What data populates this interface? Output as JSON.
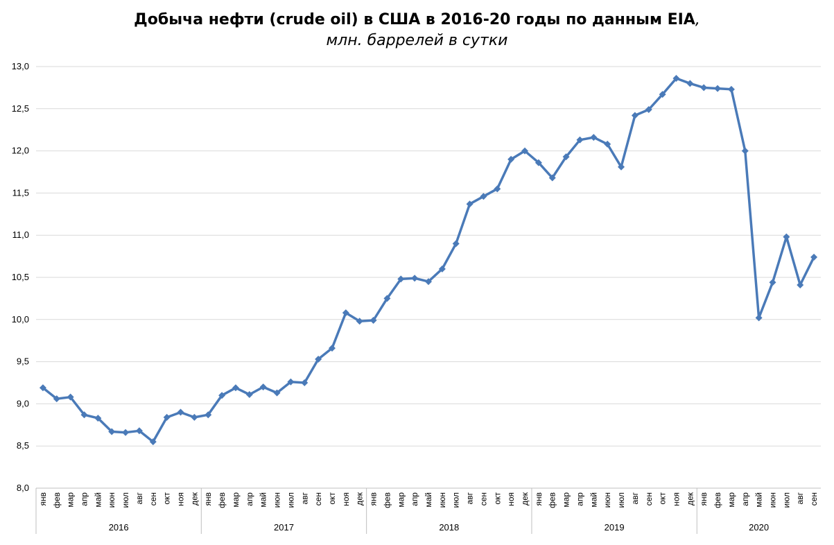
{
  "chart_data": {
    "type": "line",
    "title": "Добыча нефти (crude oil) в США в 2016-20 годы по данным EIA",
    "title_comma": ",",
    "subtitle": "млн. баррелей в сутки",
    "xlabel": "",
    "ylabel": "",
    "ylim": [
      8.0,
      13.0
    ],
    "y_ticks": [
      "8,0",
      "8,5",
      "9,0",
      "9,5",
      "10,0",
      "10,5",
      "11,0",
      "11,5",
      "12,0",
      "12,5",
      "13,0"
    ],
    "grid": true,
    "legend": "none",
    "colors": {
      "line": "#4a7ab8",
      "marker": "#4a7ab8",
      "grid": "#d9d9d9"
    },
    "years": [
      {
        "label": "2016",
        "months": 12
      },
      {
        "label": "2017",
        "months": 12
      },
      {
        "label": "2018",
        "months": 12
      },
      {
        "label": "2019",
        "months": 12
      },
      {
        "label": "2020",
        "months": 9
      }
    ],
    "categories": [
      "янв",
      "фев",
      "мар",
      "апр",
      "май",
      "июн",
      "июл",
      "авг",
      "сен",
      "окт",
      "ноя",
      "дек",
      "янв",
      "фев",
      "мар",
      "апр",
      "май",
      "июн",
      "июл",
      "авг",
      "сен",
      "окт",
      "ноя",
      "дек",
      "янв",
      "фев",
      "мар",
      "апр",
      "май",
      "июн",
      "июл",
      "авг",
      "сен",
      "окт",
      "ноя",
      "дек",
      "янв",
      "фев",
      "мар",
      "апр",
      "май",
      "июн",
      "июл",
      "авг",
      "сен",
      "окт",
      "ноя",
      "дек",
      "янв",
      "фев",
      "мар",
      "апр",
      "май",
      "июн",
      "июл",
      "авг",
      "сен"
    ],
    "values": [
      9.19,
      9.06,
      9.08,
      8.87,
      8.83,
      8.67,
      8.66,
      8.68,
      8.55,
      8.84,
      8.9,
      8.84,
      8.87,
      9.1,
      9.19,
      9.11,
      9.2,
      9.13,
      9.26,
      9.25,
      9.53,
      9.66,
      10.08,
      9.98,
      9.99,
      10.25,
      10.48,
      10.49,
      10.45,
      10.6,
      10.9,
      11.37,
      11.46,
      11.55,
      11.9,
      12.0,
      11.86,
      11.68,
      11.93,
      12.13,
      12.16,
      12.08,
      11.81,
      12.42,
      12.49,
      12.67,
      12.86,
      12.8,
      12.75,
      12.74,
      12.73,
      12.0,
      10.02,
      10.44,
      10.98,
      10.41,
      10.74
    ]
  }
}
